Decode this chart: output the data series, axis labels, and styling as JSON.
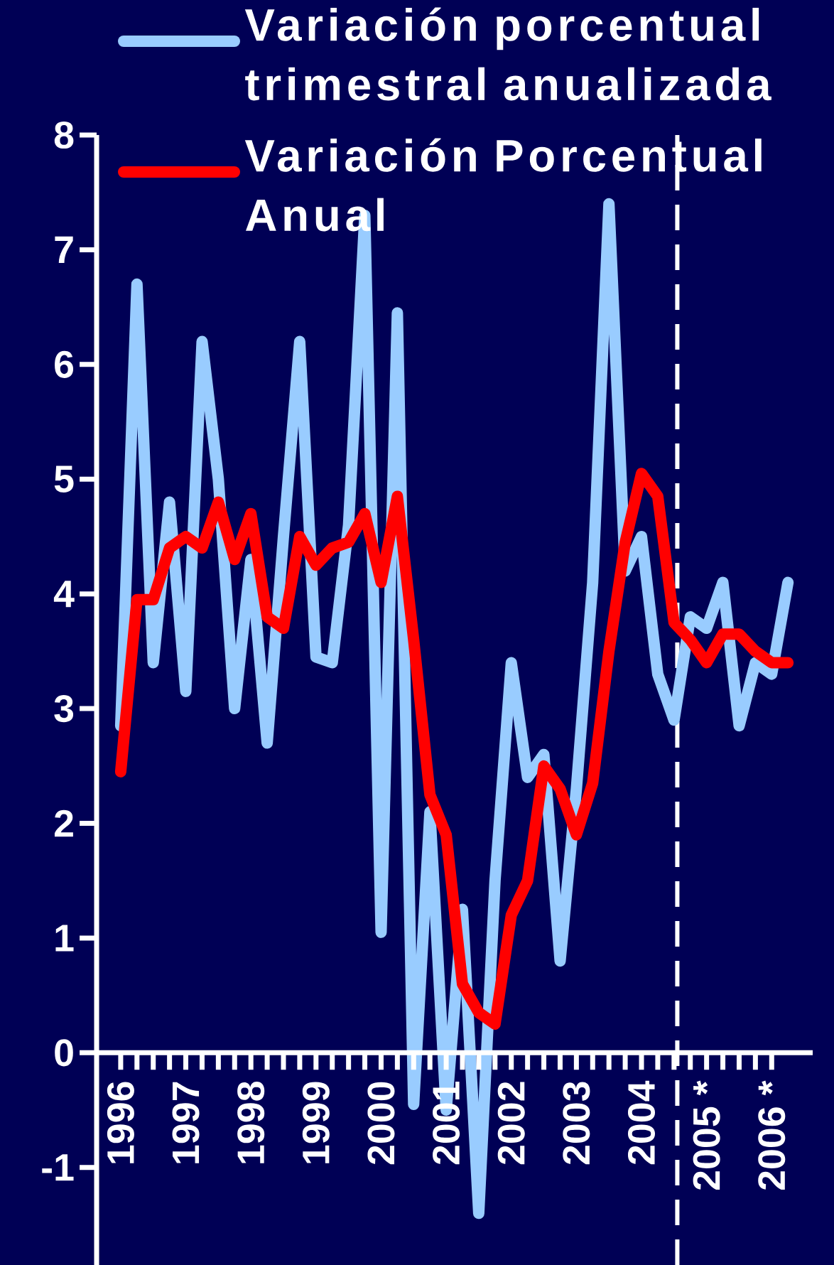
{
  "chart_data": {
    "type": "line",
    "x": [
      1996,
      1996.25,
      1996.5,
      1996.75,
      1997,
      1997.25,
      1997.5,
      1997.75,
      1998,
      1998.25,
      1998.5,
      1998.75,
      1999,
      1999.25,
      1999.5,
      1999.75,
      2000,
      2000.25,
      2000.5,
      2000.75,
      2001,
      2001.25,
      2001.5,
      2001.75,
      2002,
      2002.25,
      2002.5,
      2002.75,
      2003,
      2003.25,
      2003.5,
      2003.75,
      2004,
      2004.25,
      2004.5,
      2004.75,
      2005,
      2005.25,
      2005.5,
      2005.75,
      2006,
      2006.25
    ],
    "series": [
      {
        "name": "Variación porcentual trimestral anualizada",
        "color": "#99ccff",
        "values": [
          2.85,
          6.7,
          3.4,
          4.8,
          3.15,
          6.2,
          5.0,
          3.0,
          4.3,
          2.7,
          4.5,
          6.2,
          3.45,
          3.4,
          4.6,
          7.3,
          1.05,
          6.45,
          -0.45,
          2.1,
          -0.5,
          1.25,
          -1.4,
          1.5,
          3.4,
          2.4,
          2.6,
          0.8,
          2.3,
          4.1,
          7.4,
          4.2,
          4.5,
          3.3,
          2.9,
          3.8,
          3.7,
          4.1,
          2.85,
          3.4,
          3.3,
          4.1
        ]
      },
      {
        "name": "Variación Porcentual Anual",
        "color": "#ff0000",
        "values": [
          2.45,
          3.95,
          3.95,
          4.4,
          4.5,
          4.4,
          4.8,
          4.3,
          4.7,
          3.8,
          3.7,
          4.5,
          4.25,
          4.4,
          4.45,
          4.7,
          4.1,
          4.85,
          3.6,
          2.25,
          1.9,
          0.6,
          0.35,
          0.25,
          1.2,
          1.5,
          2.5,
          2.3,
          1.9,
          2.35,
          3.5,
          4.45,
          5.05,
          4.85,
          3.75,
          3.6,
          3.4,
          3.65,
          3.65,
          3.5,
          3.4,
          3.4
        ]
      }
    ],
    "xlim": [
      1995.63,
      2006.63
    ],
    "xticks": [
      1996,
      1997,
      1998,
      1999,
      2000,
      2001,
      2002,
      2003,
      2004,
      {
        "value": 2005,
        "label": "2005 *"
      },
      {
        "value": 2006,
        "label": "2006 *"
      }
    ],
    "ylim": [
      -1.85,
      8
    ],
    "yticks": [
      -1,
      0,
      1,
      2,
      3,
      4,
      5,
      6,
      7,
      8
    ],
    "ref_lines": [
      {
        "axis": "x",
        "value": 2004.55,
        "color": "#ffffff",
        "line_style": "dashed"
      }
    ],
    "legend": "top right",
    "marker": "none",
    "line_style": "solid"
  }
}
